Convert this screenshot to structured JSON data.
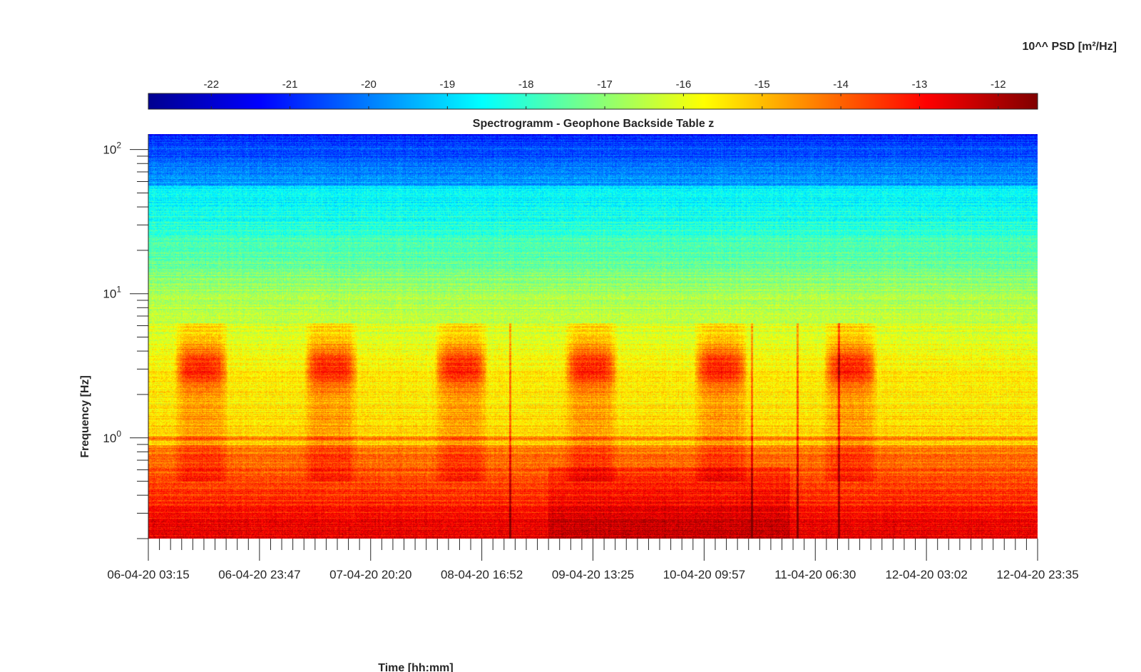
{
  "chart_data": {
    "type": "heatmap",
    "title": "Spectrogramm - Geophone Backside Table z",
    "xlabel": "Time [hh:mm]",
    "ylabel": "Frequency [Hz]",
    "y_scale": "log",
    "ylim": [
      0.2,
      128
    ],
    "x_tick_labels": [
      "06-04-20 03:15",
      "06-04-20 23:47",
      "07-04-20 20:20",
      "08-04-20 16:52",
      "09-04-20 13:25",
      "10-04-20 09:57",
      "11-04-20 06:30",
      "12-04-20 03:02",
      "12-04-20 23:35"
    ],
    "y_ticks": [
      {
        "value": 1,
        "base": "10",
        "exp": "0"
      },
      {
        "value": 10,
        "base": "10",
        "exp": "1"
      },
      {
        "value": 100,
        "base": "10",
        "exp": "2"
      }
    ],
    "colorbar": {
      "title": "10^^ PSD [m²/Hz]",
      "range": [
        -22.8,
        -11.5
      ],
      "tick_labels": [
        "-22",
        "-21",
        "-20",
        "-19",
        "-18",
        "-17",
        "-16",
        "-15",
        "-14",
        "-13",
        "-12"
      ],
      "tick_values": [
        -22,
        -21,
        -20,
        -19,
        -18,
        -17,
        -16,
        -15,
        -14,
        -13,
        -12
      ],
      "colormap": "jet"
    },
    "day_activity_blocks": [
      {
        "start": "06-04-20 08:00",
        "end": "06-04-20 18:00"
      },
      {
        "start": "07-04-20 08:00",
        "end": "07-04-20 18:00"
      },
      {
        "start": "08-04-20 08:00",
        "end": "08-04-20 18:00"
      },
      {
        "start": "09-04-20 08:00",
        "end": "09-04-20 18:00"
      },
      {
        "start": "10-04-20 08:00",
        "end": "10-04-20 18:00"
      },
      {
        "start": "11-04-20 08:00",
        "end": "11-04-20 18:00"
      }
    ]
  }
}
